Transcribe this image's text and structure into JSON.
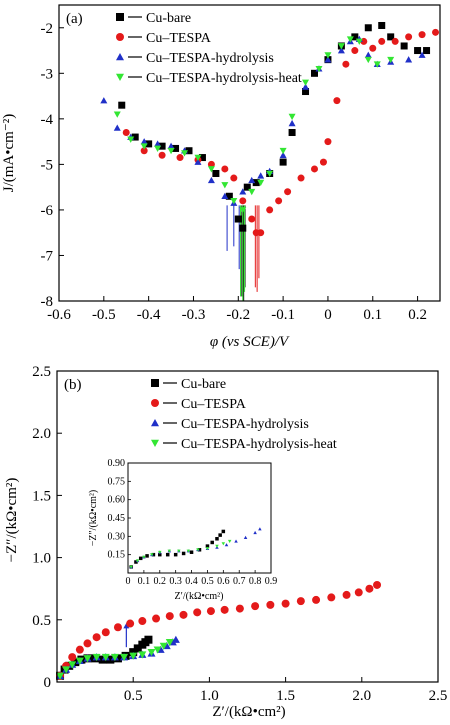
{
  "colors": {
    "black": "#000000",
    "red": "#e41a1a",
    "blue": "#2030c8",
    "green": "#33e633"
  },
  "chart_data": [
    {
      "type": "scatter",
      "panel_label": "(a)",
      "xlabel": "φ (vs SCE)/V",
      "ylabel": "J/(mA•cm⁻²)",
      "xlim": [
        -0.6,
        0.25
      ],
      "ylim": [
        -8,
        -1.5
      ],
      "x_ticks": [
        "-0.6",
        "-0.5",
        "-0.4",
        "-0.3",
        "-0.2",
        "-0.1",
        "0",
        "0.1",
        "0.2"
      ],
      "y_ticks": [
        "-8",
        "-7",
        "-6",
        "-5",
        "-4",
        "-3",
        "-2"
      ],
      "legend_position": "top-right",
      "series": [
        {
          "name": "Cu-bare",
          "color": "black",
          "marker": "square",
          "x": [
            -0.46,
            -0.43,
            -0.4,
            -0.37,
            -0.34,
            -0.31,
            -0.28,
            -0.25,
            -0.22,
            -0.2,
            -0.19,
            -0.18,
            -0.16,
            -0.13,
            -0.1,
            -0.08,
            -0.05,
            -0.03,
            0.0,
            0.03,
            0.06,
            0.09,
            0.12,
            0.14,
            0.17,
            0.2,
            0.22
          ],
          "y": [
            -3.7,
            -4.4,
            -4.55,
            -4.6,
            -4.65,
            -4.7,
            -4.85,
            -5.2,
            -5.7,
            -6.2,
            -6.4,
            -5.5,
            -5.4,
            -5.2,
            -4.95,
            -4.3,
            -3.4,
            -3.0,
            -2.7,
            -2.4,
            -2.2,
            -2.0,
            -1.95,
            -2.2,
            -2.4,
            -2.5,
            -2.5
          ]
        },
        {
          "name": "Cu–TESPA",
          "color": "red",
          "marker": "circle",
          "x": [
            -0.45,
            -0.41,
            -0.37,
            -0.33,
            -0.29,
            -0.26,
            -0.23,
            -0.21,
            -0.19,
            -0.17,
            -0.16,
            -0.15,
            -0.13,
            -0.11,
            -0.09,
            -0.06,
            -0.03,
            -0.01,
            0.0,
            0.02,
            0.04,
            0.06,
            0.08,
            0.1,
            0.12,
            0.15,
            0.18,
            0.21,
            0.24
          ],
          "y": [
            -4.3,
            -4.7,
            -4.8,
            -4.85,
            -4.9,
            -5.0,
            -5.1,
            -5.3,
            -5.8,
            -6.2,
            -6.5,
            -6.5,
            -6.0,
            -5.8,
            -5.6,
            -5.3,
            -5.1,
            -4.95,
            -4.5,
            -3.6,
            -2.8,
            -2.5,
            -2.3,
            -2.45,
            -2.3,
            -2.3,
            -2.2,
            -2.15,
            -2.1
          ]
        },
        {
          "name": "Cu–TESPA-hydrolysis",
          "color": "blue",
          "marker": "triangle",
          "x": [
            -0.5,
            -0.47,
            -0.44,
            -0.41,
            -0.38,
            -0.35,
            -0.32,
            -0.29,
            -0.26,
            -0.23,
            -0.21,
            -0.19,
            -0.17,
            -0.15,
            -0.13,
            -0.1,
            -0.08,
            -0.05,
            -0.02,
            0.0,
            0.03,
            0.05,
            0.07,
            0.09,
            0.11,
            0.14,
            0.18,
            0.21
          ],
          "y": [
            -3.6,
            -4.2,
            -4.4,
            -4.5,
            -4.55,
            -4.6,
            -4.7,
            -4.95,
            -5.35,
            -5.7,
            -5.85,
            -5.6,
            -5.35,
            -5.25,
            -5.15,
            -4.8,
            -4.1,
            -3.3,
            -2.9,
            -2.7,
            -2.5,
            -2.3,
            -2.25,
            -2.6,
            -2.8,
            -2.75,
            -2.7,
            -2.6
          ]
        },
        {
          "name": "Cu–TESPA-hydrolysis-heat",
          "color": "green",
          "marker": "triangle-down",
          "x": [
            -0.47,
            -0.44,
            -0.41,
            -0.38,
            -0.35,
            -0.32,
            -0.29,
            -0.26,
            -0.23,
            -0.21,
            -0.19,
            -0.17,
            -0.15,
            -0.13,
            -0.1,
            -0.08,
            -0.05,
            -0.02,
            0.0,
            0.03,
            0.05,
            0.07,
            0.09,
            0.11,
            0.14
          ],
          "y": [
            -3.9,
            -4.45,
            -4.6,
            -4.65,
            -4.7,
            -4.75,
            -4.85,
            -5.1,
            -5.45,
            -5.8,
            -6.0,
            -5.6,
            -5.4,
            -5.2,
            -4.7,
            -3.95,
            -3.2,
            -2.9,
            -2.6,
            -2.4,
            -2.25,
            -2.3,
            -2.7,
            -2.8,
            -2.7
          ]
        }
      ],
      "spikes": [
        {
          "color": "black",
          "x": [
            -0.192,
            -0.188,
            -0.185
          ],
          "y_bottom": [
            -7.9,
            -8.0,
            -7.7
          ]
        },
        {
          "color": "red",
          "x": [
            -0.162,
            -0.158,
            -0.154
          ],
          "y_bottom": [
            -7.7,
            -7.8,
            -7.5
          ]
        },
        {
          "color": "blue",
          "x": [
            -0.225,
            -0.21,
            -0.198
          ],
          "y_bottom": [
            -6.9,
            -6.8,
            -7.3
          ]
        },
        {
          "color": "green",
          "x": [
            -0.195,
            -0.19,
            -0.186
          ],
          "y_bottom": [
            -7.9,
            -8.0,
            -7.8
          ]
        }
      ]
    },
    {
      "type": "scatter",
      "panel_label": "(b)",
      "xlabel": "Z′/(kΩ•cm²)",
      "ylabel": "−Z″/(kΩ•cm²)",
      "xlim": [
        0,
        2.5
      ],
      "ylim": [
        0,
        2.5
      ],
      "x_ticks": [
        "0.5",
        "1.0",
        "1.5",
        "2.0",
        "2.5"
      ],
      "y_ticks": [
        "0",
        "0.5",
        "1.0",
        "1.5",
        "2.0",
        "2.5"
      ],
      "legend_position": "top-right",
      "series": [
        {
          "name": "Cu-bare",
          "color": "black",
          "marker": "square",
          "x": [
            0.02,
            0.05,
            0.08,
            0.12,
            0.16,
            0.2,
            0.25,
            0.3,
            0.35,
            0.4,
            0.45,
            0.5,
            0.53,
            0.56,
            0.58,
            0.6
          ],
          "y": [
            0.05,
            0.1,
            0.13,
            0.16,
            0.18,
            0.19,
            0.19,
            0.18,
            0.18,
            0.19,
            0.21,
            0.24,
            0.27,
            0.3,
            0.32,
            0.34
          ]
        },
        {
          "name": "Cu–TESPA",
          "color": "red",
          "marker": "circle",
          "x": [
            0.02,
            0.06,
            0.1,
            0.15,
            0.2,
            0.26,
            0.32,
            0.4,
            0.48,
            0.56,
            0.65,
            0.74,
            0.83,
            0.92,
            1.01,
            1.1,
            1.2,
            1.3,
            1.4,
            1.5,
            1.6,
            1.7,
            1.8,
            1.9,
            1.98,
            2.05,
            2.1
          ],
          "y": [
            0.05,
            0.13,
            0.2,
            0.26,
            0.31,
            0.36,
            0.4,
            0.44,
            0.47,
            0.49,
            0.51,
            0.53,
            0.54,
            0.56,
            0.57,
            0.58,
            0.59,
            0.61,
            0.62,
            0.63,
            0.65,
            0.66,
            0.68,
            0.7,
            0.72,
            0.75,
            0.78
          ]
        },
        {
          "name": "Cu–TESPA-hydrolysis",
          "color": "blue",
          "marker": "triangle",
          "x": [
            0.02,
            0.06,
            0.1,
            0.15,
            0.2,
            0.26,
            0.32,
            0.38,
            0.44,
            0.5,
            0.56,
            0.62,
            0.68,
            0.72,
            0.76,
            0.78
          ],
          "y": [
            0.05,
            0.1,
            0.14,
            0.17,
            0.19,
            0.2,
            0.2,
            0.2,
            0.2,
            0.21,
            0.22,
            0.23,
            0.26,
            0.29,
            0.32,
            0.34
          ]
        },
        {
          "name": "Cu–TESPA-hydrolysis-heat",
          "color": "green",
          "marker": "triangle-down",
          "x": [
            0.02,
            0.06,
            0.1,
            0.15,
            0.2,
            0.26,
            0.32,
            0.38,
            0.44,
            0.5,
            0.56,
            0.62,
            0.66,
            0.7,
            0.74
          ],
          "y": [
            0.05,
            0.1,
            0.14,
            0.17,
            0.19,
            0.2,
            0.2,
            0.2,
            0.2,
            0.21,
            0.22,
            0.24,
            0.26,
            0.29,
            0.32
          ]
        }
      ],
      "spikes": [
        {
          "color": "blue",
          "x": [
            0.455
          ],
          "y_top": [
            0.45
          ]
        }
      ],
      "inset": {
        "xlabel": "Z′/(kΩ•cm²)",
        "ylabel": "−Z″/(kΩ•cm²)",
        "xlim": [
          0,
          0.9
        ],
        "ylim": [
          0,
          0.9
        ],
        "x_ticks": [
          "0",
          "0.1",
          "0.2",
          "0.3",
          "0.4",
          "0.5",
          "0.6",
          "0.7",
          "0.8",
          "0.9"
        ],
        "y_ticks": [
          "0.15",
          "0.30",
          "0.45",
          "0.60",
          "0.75",
          "0.90"
        ],
        "series": [
          {
            "color": "black",
            "marker": "square",
            "x": [
              0.02,
              0.05,
              0.08,
              0.12,
              0.16,
              0.2,
              0.25,
              0.3,
              0.35,
              0.4,
              0.45,
              0.5,
              0.53,
              0.56,
              0.58,
              0.6
            ],
            "y": [
              0.05,
              0.09,
              0.12,
              0.14,
              0.15,
              0.15,
              0.15,
              0.15,
              0.16,
              0.17,
              0.19,
              0.22,
              0.25,
              0.28,
              0.31,
              0.34
            ]
          },
          {
            "color": "blue",
            "marker": "triangle",
            "x": [
              0.02,
              0.06,
              0.1,
              0.15,
              0.2,
              0.26,
              0.32,
              0.38,
              0.44,
              0.5,
              0.56,
              0.62,
              0.68,
              0.74,
              0.8,
              0.83
            ],
            "y": [
              0.05,
              0.1,
              0.13,
              0.15,
              0.17,
              0.18,
              0.18,
              0.18,
              0.19,
              0.2,
              0.21,
              0.23,
              0.26,
              0.29,
              0.33,
              0.36
            ]
          },
          {
            "color": "green",
            "marker": "triangle-down",
            "x": [
              0.02,
              0.06,
              0.1,
              0.15,
              0.2,
              0.26,
              0.32,
              0.38,
              0.44,
              0.5,
              0.56,
              0.6,
              0.64
            ],
            "y": [
              0.05,
              0.1,
              0.13,
              0.15,
              0.17,
              0.18,
              0.18,
              0.18,
              0.19,
              0.2,
              0.22,
              0.24,
              0.26
            ]
          }
        ]
      }
    }
  ]
}
